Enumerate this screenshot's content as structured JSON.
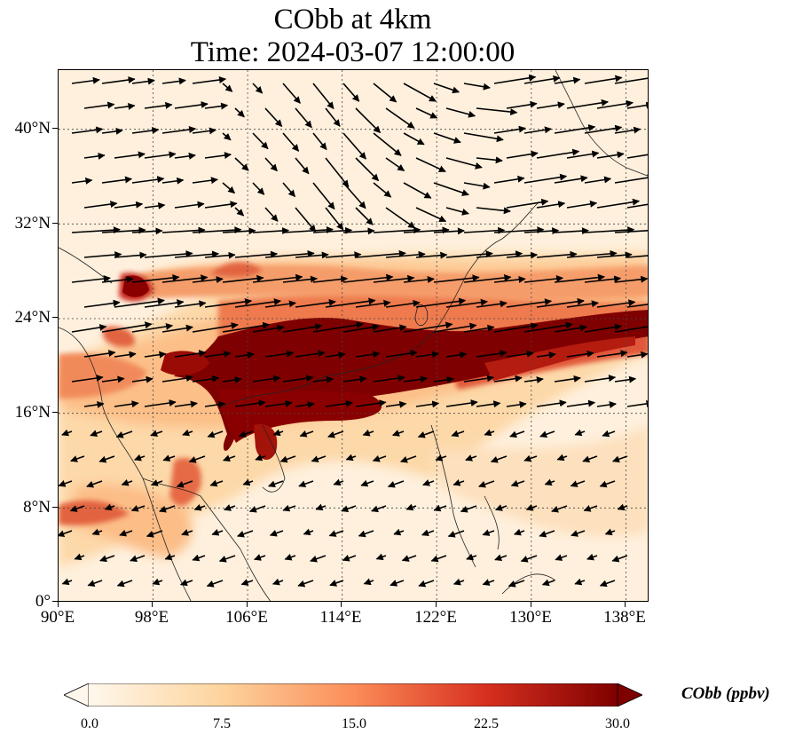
{
  "title": {
    "line1": "CObb at 4km",
    "line2": "Time: 2024-03-07 12:00:00"
  },
  "map": {
    "projection": "PlateCarree",
    "lon_range": [
      90,
      140
    ],
    "lat_range": [
      0,
      45
    ],
    "variable": "CObb",
    "level": "4km",
    "gridlines": "dotted",
    "wind_vectors": true,
    "coastlines": true,
    "x_tick_labels": [
      "90°E",
      "98°E",
      "106°E",
      "114°E",
      "122°E",
      "130°E",
      "138°E"
    ],
    "y_tick_labels": [
      "0°",
      "8°N",
      "16°N",
      "24°N",
      "32°N",
      "40°N"
    ]
  },
  "colorbar": {
    "label": "CObb (ppbv)",
    "cmap": "OrRd",
    "extend": "both",
    "range": [
      0,
      30
    ],
    "tick_labels": [
      "0.0",
      "7.5",
      "15.0",
      "22.5",
      "30.0"
    ],
    "colors": [
      "#fff7ec",
      "#fdd49e",
      "#fc8d59",
      "#d7301f",
      "#7f0000"
    ]
  }
}
